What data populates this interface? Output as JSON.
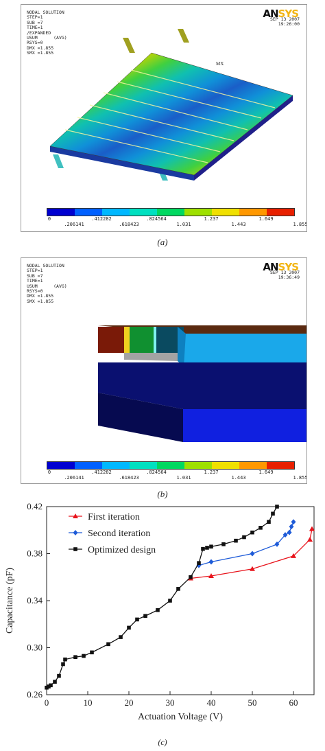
{
  "panel_a": {
    "info_lines": [
      "NODAL SOLUTION",
      "STEP=1",
      "SUB =7",
      "TIME=1",
      "/EXPANDED",
      "USUM      (AVG)",
      "RSYS=0",
      "DMX =1.855",
      "SMX =1.855"
    ],
    "logo": "ANSYS",
    "date": "SEP 13 2007",
    "time": "19:26:00",
    "mx_label": "MX",
    "caption": "(a)"
  },
  "panel_b": {
    "info_lines": [
      "NODAL SOLUTION",
      "STEP=1",
      "SUB =7",
      "TIME=1",
      "USUM      (AVG)",
      "RSYS=0",
      "DMX =1.855",
      "SMX =1.855"
    ],
    "logo": "ANSYS",
    "date": "SEP 13 2007",
    "time": "19:36:49",
    "caption": "(b)"
  },
  "contour_legend": {
    "colors": [
      "#0000d0",
      "#0060ff",
      "#00b8ff",
      "#00e0c0",
      "#00d860",
      "#9ee000",
      "#f0e000",
      "#ff9800",
      "#e82000"
    ],
    "top_labels": [
      "0",
      ".412282",
      ".824564",
      "1.237",
      "1.649"
    ],
    "bottom_labels": [
      ".206141",
      ".618423",
      "1.031",
      "1.443",
      "1.855"
    ]
  },
  "chart_data": {
    "type": "line",
    "xlabel": "Actuation Voltage (V)",
    "ylabel": "Capacitance (pF)",
    "xlim": [
      0,
      65
    ],
    "ylim": [
      0.26,
      0.42
    ],
    "xticks": [
      0,
      10,
      20,
      30,
      40,
      50,
      60
    ],
    "yticks": [
      0.26,
      0.3,
      0.34,
      0.38,
      0.42
    ],
    "ytick_labels": [
      "0.26",
      "0.30",
      "0.34",
      "0.38",
      "0.42"
    ],
    "legend_position": "top-left",
    "series": [
      {
        "name": "First iteration",
        "color": "#e8141c",
        "marker": "triangle",
        "x": [
          35,
          40,
          50,
          60,
          64,
          64.5
        ],
        "y": [
          0.359,
          0.361,
          0.367,
          0.378,
          0.392,
          0.401
        ]
      },
      {
        "name": "Second iteration",
        "color": "#1e5bd8",
        "marker": "diamond",
        "x": [
          37,
          40,
          50,
          56,
          58,
          59,
          59.5,
          60
        ],
        "y": [
          0.37,
          0.373,
          0.38,
          0.388,
          0.396,
          0.398,
          0.403,
          0.407
        ]
      },
      {
        "name": "Optimized design",
        "color": "#111111",
        "marker": "square",
        "x": [
          0,
          0.5,
          1,
          2,
          3,
          4,
          4.5,
          7,
          9,
          11,
          15,
          18,
          20,
          22,
          24,
          27,
          30,
          32,
          35,
          37,
          38,
          39,
          40,
          43,
          46,
          48,
          50,
          52,
          54,
          55,
          56
        ],
        "y": [
          0.266,
          0.267,
          0.268,
          0.271,
          0.276,
          0.286,
          0.29,
          0.292,
          0.293,
          0.296,
          0.303,
          0.309,
          0.317,
          0.324,
          0.327,
          0.332,
          0.34,
          0.35,
          0.36,
          0.372,
          0.384,
          0.385,
          0.386,
          0.388,
          0.391,
          0.394,
          0.398,
          0.402,
          0.407,
          0.414,
          0.42
        ]
      }
    ]
  },
  "chart_caption": "(c)"
}
